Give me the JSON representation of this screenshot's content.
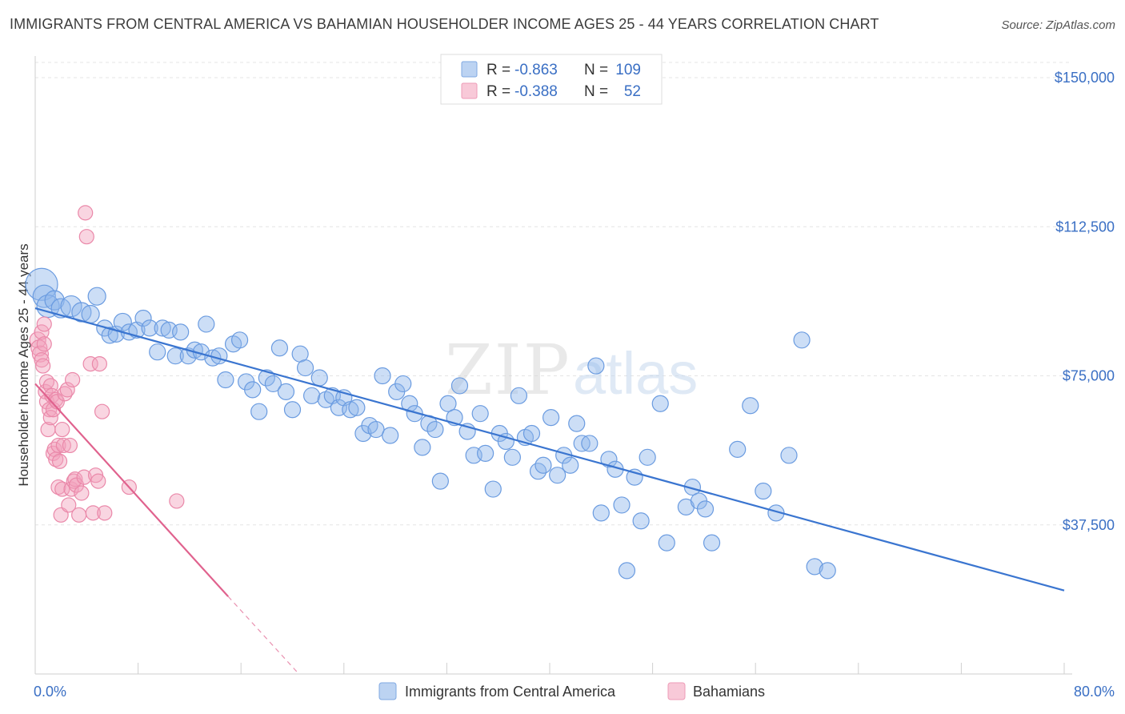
{
  "header": {
    "title": "IMMIGRANTS FROM CENTRAL AMERICA VS BAHAMIAN HOUSEHOLDER INCOME AGES 25 - 44 YEARS CORRELATION CHART",
    "source": "Source: ZipAtlas.com"
  },
  "watermark": {
    "zip": "ZIP",
    "atlas": "atlas"
  },
  "legend": {
    "r_label": "R =",
    "n_label": "N =",
    "rows": [
      {
        "name": "Immigrants from Central America",
        "r": "-0.863",
        "n": "109",
        "color": "#8fb6ea"
      },
      {
        "name": "Bahamians",
        "r": "-0.388",
        "n": "52",
        "color": "#f2a2bc"
      }
    ]
  },
  "colors": {
    "blue": "#3a75d0",
    "pink": "#e0628e",
    "accent": "#3a6fc4"
  },
  "chart_data": {
    "type": "scatter",
    "title": "IMMIGRANTS FROM CENTRAL AMERICA VS BAHAMIAN HOUSEHOLDER INCOME AGES 25 - 44 YEARS CORRELATION CHART",
    "xlabel": "",
    "ylabel": "Householder Income Ages 25 - 44 years",
    "xlim": [
      0,
      80
    ],
    "ylim": [
      0,
      155000
    ],
    "x_tick_labels": [
      "0.0%",
      "80.0%"
    ],
    "y_ticks": [
      {
        "value": 37500,
        "label": "$37,500"
      },
      {
        "value": 75000,
        "label": "$75,000"
      },
      {
        "value": 112500,
        "label": "$112,500"
      },
      {
        "value": 150000,
        "label": "$150,000"
      }
    ],
    "series": [
      {
        "name": "Immigrants from Central America",
        "color": "#8fb6ea",
        "stroke": "#6a9be0",
        "trend": {
          "x0": 0,
          "y0": 92000,
          "x1": 80,
          "y1": 21000
        },
        "points": [
          [
            0.5,
            98000,
            20
          ],
          [
            0.7,
            95000,
            14
          ],
          [
            1.0,
            92500,
            14
          ],
          [
            1.5,
            94000,
            12
          ],
          [
            2.0,
            92000,
            12
          ],
          [
            2.8,
            92500,
            13
          ],
          [
            3.6,
            91000,
            12
          ],
          [
            4.3,
            90500,
            11
          ],
          [
            4.8,
            95000,
            11
          ],
          [
            5.4,
            87000,
            10
          ],
          [
            5.8,
            85200,
            10
          ],
          [
            6.3,
            85500,
            10
          ],
          [
            6.8,
            88500,
            11
          ],
          [
            7.3,
            86000,
            10
          ],
          [
            7.9,
            86500,
            10
          ],
          [
            8.4,
            89500,
            10
          ],
          [
            8.9,
            87000,
            10
          ],
          [
            9.5,
            81000,
            10
          ],
          [
            9.9,
            87000,
            10
          ],
          [
            10.4,
            86500,
            10
          ],
          [
            10.9,
            80000,
            10
          ],
          [
            11.3,
            86000,
            10
          ],
          [
            11.9,
            80000,
            10
          ],
          [
            12.4,
            81500,
            10
          ],
          [
            12.9,
            81000,
            10
          ],
          [
            13.3,
            88000,
            10
          ],
          [
            13.8,
            79500,
            10
          ],
          [
            14.3,
            80000,
            10
          ],
          [
            14.8,
            74000,
            10
          ],
          [
            15.4,
            83000,
            10
          ],
          [
            15.9,
            84000,
            10
          ],
          [
            16.4,
            73500,
            10
          ],
          [
            16.9,
            71500,
            10
          ],
          [
            17.4,
            66000,
            10
          ],
          [
            18.0,
            74500,
            10
          ],
          [
            18.5,
            73000,
            10
          ],
          [
            19.0,
            82000,
            10
          ],
          [
            19.5,
            71000,
            10
          ],
          [
            20.0,
            66500,
            10
          ],
          [
            20.6,
            80500,
            10
          ],
          [
            21.0,
            77000,
            10
          ],
          [
            21.5,
            70000,
            10
          ],
          [
            22.1,
            74500,
            10
          ],
          [
            22.6,
            69000,
            10
          ],
          [
            23.1,
            70000,
            10
          ],
          [
            23.6,
            67000,
            10
          ],
          [
            24.0,
            69500,
            10
          ],
          [
            24.5,
            66500,
            10
          ],
          [
            25.0,
            67000,
            10
          ],
          [
            25.5,
            60500,
            10
          ],
          [
            26.0,
            62500,
            10
          ],
          [
            26.5,
            61500,
            10
          ],
          [
            27.0,
            75000,
            10
          ],
          [
            27.6,
            60000,
            10
          ],
          [
            28.1,
            71000,
            10
          ],
          [
            28.6,
            73000,
            10
          ],
          [
            29.1,
            68000,
            10
          ],
          [
            29.5,
            65500,
            10
          ],
          [
            30.1,
            57000,
            10
          ],
          [
            30.6,
            63000,
            10
          ],
          [
            31.1,
            61500,
            10
          ],
          [
            31.5,
            48500,
            10
          ],
          [
            32.1,
            68000,
            10
          ],
          [
            32.6,
            64500,
            10
          ],
          [
            33.0,
            72500,
            10
          ],
          [
            33.6,
            61000,
            10
          ],
          [
            34.1,
            55000,
            10
          ],
          [
            34.6,
            65500,
            10
          ],
          [
            35.0,
            55500,
            10
          ],
          [
            35.6,
            46500,
            10
          ],
          [
            36.1,
            60500,
            10
          ],
          [
            36.6,
            58500,
            10
          ],
          [
            37.1,
            54500,
            10
          ],
          [
            37.6,
            70000,
            10
          ],
          [
            38.1,
            59500,
            10
          ],
          [
            38.6,
            60500,
            10
          ],
          [
            39.1,
            51000,
            10
          ],
          [
            39.5,
            52500,
            10
          ],
          [
            40.1,
            64500,
            10
          ],
          [
            40.6,
            50000,
            10
          ],
          [
            41.1,
            55000,
            10
          ],
          [
            41.6,
            52500,
            10
          ],
          [
            42.1,
            63000,
            10
          ],
          [
            42.5,
            58000,
            10
          ],
          [
            43.1,
            58000,
            10
          ],
          [
            43.6,
            77500,
            10
          ],
          [
            44.0,
            40500,
            10
          ],
          [
            44.6,
            54000,
            10
          ],
          [
            45.1,
            51500,
            10
          ],
          [
            45.6,
            42500,
            10
          ],
          [
            46.0,
            26000,
            10
          ],
          [
            46.6,
            49500,
            10
          ],
          [
            47.1,
            38500,
            10
          ],
          [
            47.6,
            54500,
            10
          ],
          [
            48.6,
            68000,
            10
          ],
          [
            49.1,
            33000,
            10
          ],
          [
            50.6,
            42000,
            10
          ],
          [
            51.1,
            47000,
            10
          ],
          [
            51.6,
            43500,
            10
          ],
          [
            52.1,
            41500,
            10
          ],
          [
            52.6,
            33000,
            10
          ],
          [
            54.6,
            56500,
            10
          ],
          [
            55.6,
            67500,
            10
          ],
          [
            56.6,
            46000,
            10
          ],
          [
            57.6,
            40500,
            10
          ],
          [
            58.6,
            55000,
            10
          ],
          [
            59.6,
            84000,
            10
          ],
          [
            60.6,
            27000,
            10
          ],
          [
            61.6,
            26000,
            10
          ]
        ]
      },
      {
        "name": "Bahamians",
        "color": "#f2a2bc",
        "stroke": "#ea88a9",
        "trend": {
          "x0": 0,
          "y0": 73000,
          "x1": 15,
          "y1": 19500
        },
        "trend_dashed": {
          "x0": 15,
          "y0": 19500,
          "x1": 20.5,
          "y1": 0
        },
        "points": [
          [
            0.2,
            84000,
            10
          ],
          [
            0.3,
            82000,
            10
          ],
          [
            0.4,
            80500,
            10
          ],
          [
            0.5,
            79000,
            9
          ],
          [
            0.5,
            86000,
            9
          ],
          [
            0.6,
            77500,
            9
          ],
          [
            0.7,
            88000,
            9
          ],
          [
            0.7,
            83000,
            9
          ],
          [
            0.8,
            71000,
            9
          ],
          [
            0.9,
            68500,
            9
          ],
          [
            0.9,
            73500,
            9
          ],
          [
            1.0,
            61500,
            9
          ],
          [
            1.1,
            66500,
            9
          ],
          [
            1.2,
            64500,
            9
          ],
          [
            1.2,
            72500,
            9
          ],
          [
            1.3,
            70000,
            9
          ],
          [
            1.4,
            66500,
            9
          ],
          [
            1.4,
            55500,
            9
          ],
          [
            1.5,
            56500,
            9
          ],
          [
            1.6,
            54000,
            9
          ],
          [
            1.6,
            69000,
            9
          ],
          [
            1.7,
            68500,
            9
          ],
          [
            1.8,
            57500,
            9
          ],
          [
            1.8,
            47000,
            9
          ],
          [
            1.9,
            53500,
            9
          ],
          [
            2.0,
            40000,
            9
          ],
          [
            2.1,
            46500,
            9
          ],
          [
            2.1,
            61500,
            9
          ],
          [
            2.2,
            57500,
            9
          ],
          [
            2.3,
            70500,
            9
          ],
          [
            2.5,
            71500,
            9
          ],
          [
            2.6,
            42500,
            9
          ],
          [
            2.7,
            57500,
            9
          ],
          [
            2.8,
            46500,
            9
          ],
          [
            2.9,
            74000,
            9
          ],
          [
            3.0,
            48500,
            9
          ],
          [
            3.1,
            49000,
            9
          ],
          [
            3.2,
            47500,
            9
          ],
          [
            3.4,
            40000,
            9
          ],
          [
            3.6,
            45500,
            9
          ],
          [
            3.8,
            49500,
            9
          ],
          [
            3.9,
            116000,
            9
          ],
          [
            4.0,
            110000,
            9
          ],
          [
            4.3,
            78000,
            9
          ],
          [
            4.5,
            40500,
            9
          ],
          [
            4.7,
            50000,
            9
          ],
          [
            4.9,
            48500,
            9
          ],
          [
            5.0,
            78000,
            9
          ],
          [
            5.2,
            66000,
            9
          ],
          [
            5.4,
            40500,
            9
          ],
          [
            7.3,
            47000,
            9
          ],
          [
            11.0,
            43500,
            9
          ]
        ]
      }
    ]
  }
}
